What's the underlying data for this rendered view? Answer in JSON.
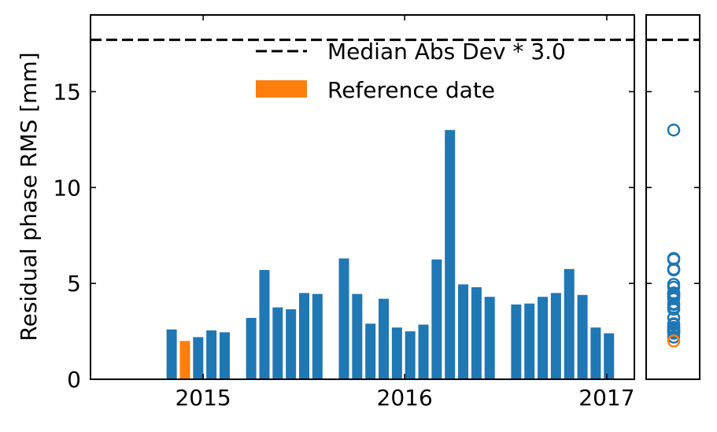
{
  "chart_data": {
    "type": "bar",
    "ylabel": "Residual phase RMS [mm]",
    "xlabel": "",
    "ylim": [
      0,
      19
    ],
    "xlim": [
      "2014-06-11",
      "2017-02-20"
    ],
    "x_ticks": [
      "2015-01-01",
      "2016-01-01",
      "2017-01-01"
    ],
    "x_tick_labels": [
      "2015",
      "2016",
      "2017"
    ],
    "y_ticks": [
      0,
      5,
      10,
      15
    ],
    "y_tick_labels": [
      "0",
      "5",
      "10",
      "15"
    ],
    "threshold": {
      "label": "Median Abs Dev * 3.0",
      "value": 17.7
    },
    "legend": {
      "placement": "top-right",
      "entries": [
        {
          "label": "Median Abs Dev * 3.0",
          "style": "dashed-line"
        },
        {
          "label": "Reference date",
          "style": "bar",
          "color": "#ff7f0e"
        }
      ]
    },
    "colors": {
      "default": "#1f77b4",
      "reference": "#ff7f0e",
      "threshold": "#000000"
    },
    "reference_date": "2014-11-29",
    "bars": [
      {
        "date": "2014-11-05",
        "value": 2.6
      },
      {
        "date": "2014-11-29",
        "value": 2.0
      },
      {
        "date": "2014-12-23",
        "value": 2.2
      },
      {
        "date": "2015-01-16",
        "value": 2.55
      },
      {
        "date": "2015-02-09",
        "value": 2.45
      },
      {
        "date": "2015-03-29",
        "value": 3.2
      },
      {
        "date": "2015-04-22",
        "value": 5.7
      },
      {
        "date": "2015-05-16",
        "value": 3.75
      },
      {
        "date": "2015-06-09",
        "value": 3.65
      },
      {
        "date": "2015-07-03",
        "value": 4.5
      },
      {
        "date": "2015-07-27",
        "value": 4.45
      },
      {
        "date": "2015-09-13",
        "value": 6.3
      },
      {
        "date": "2015-10-07",
        "value": 4.45
      },
      {
        "date": "2015-10-31",
        "value": 2.9
      },
      {
        "date": "2015-11-24",
        "value": 4.2
      },
      {
        "date": "2015-12-18",
        "value": 2.7
      },
      {
        "date": "2016-01-11",
        "value": 2.5
      },
      {
        "date": "2016-02-04",
        "value": 2.85
      },
      {
        "date": "2016-02-28",
        "value": 6.25
      },
      {
        "date": "2016-03-23",
        "value": 13.0
      },
      {
        "date": "2016-04-16",
        "value": 4.95
      },
      {
        "date": "2016-05-10",
        "value": 4.8
      },
      {
        "date": "2016-06-03",
        "value": 4.3
      },
      {
        "date": "2016-07-21",
        "value": 3.9
      },
      {
        "date": "2016-08-14",
        "value": 3.95
      },
      {
        "date": "2016-09-07",
        "value": 4.3
      },
      {
        "date": "2016-10-01",
        "value": 4.5
      },
      {
        "date": "2016-10-25",
        "value": 5.75
      },
      {
        "date": "2016-11-18",
        "value": 4.4
      },
      {
        "date": "2016-12-12",
        "value": 2.7
      },
      {
        "date": "2017-01-05",
        "value": 2.4
      }
    ]
  }
}
